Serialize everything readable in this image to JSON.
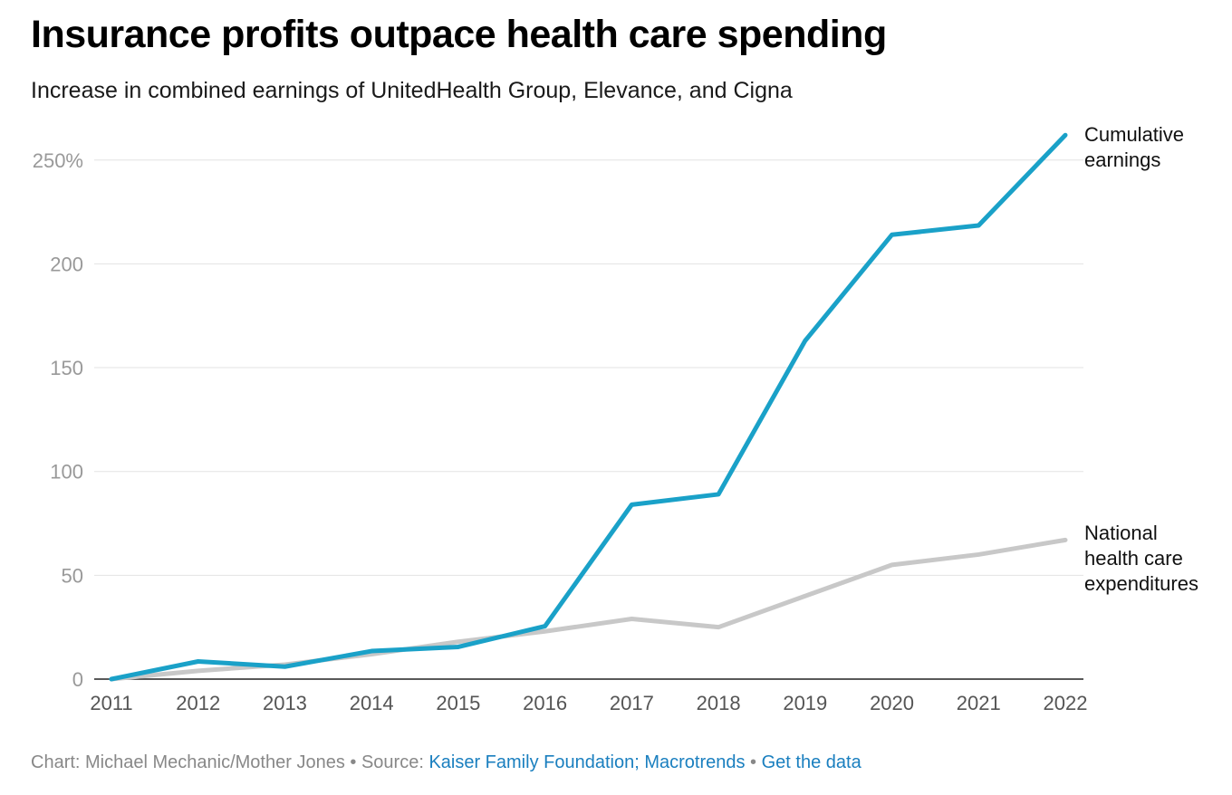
{
  "header": {
    "title": "Insurance profits outpace health care spending",
    "subtitle": "Increase in combined earnings of UnitedHealth Group, Elevance, and Cigna"
  },
  "footer": {
    "credit": "Chart: Michael Mechanic/Mother Jones",
    "separator": " • ",
    "source_label": "Source: ",
    "source_link": "Kaiser Family Foundation; Macrotrends",
    "data_link": "Get the data"
  },
  "chart_data": {
    "type": "line",
    "title": "Insurance profits outpace health care spending",
    "subtitle": "Increase in combined earnings of UnitedHealth Group, Elevance, and Cigna",
    "xlabel": "",
    "ylabel": "",
    "x": [
      2011,
      2012,
      2013,
      2014,
      2015,
      2016,
      2017,
      2018,
      2019,
      2020,
      2021,
      2022
    ],
    "ylim": [
      0,
      262
    ],
    "yticks": [
      0,
      50,
      100,
      150,
      200,
      250
    ],
    "ytick_labels": [
      "0",
      "50",
      "100",
      "150",
      "200",
      "250%"
    ],
    "grid": true,
    "legend": "direct labels at line ends",
    "series": [
      {
        "name": "National health care expenditures",
        "label_lines": [
          "National",
          "health care",
          "expenditures"
        ],
        "color": "#c8c8c8",
        "values": [
          0,
          4,
          7,
          12,
          18,
          23,
          29,
          25,
          40,
          55,
          60,
          67
        ]
      },
      {
        "name": "Cumulative earnings",
        "label_lines": [
          "Cumulative",
          "earnings"
        ],
        "color": "#1aa1c8",
        "values": [
          0,
          8.5,
          6,
          13.5,
          15.5,
          25.5,
          84,
          89,
          163,
          214,
          218.5,
          262
        ]
      }
    ]
  }
}
